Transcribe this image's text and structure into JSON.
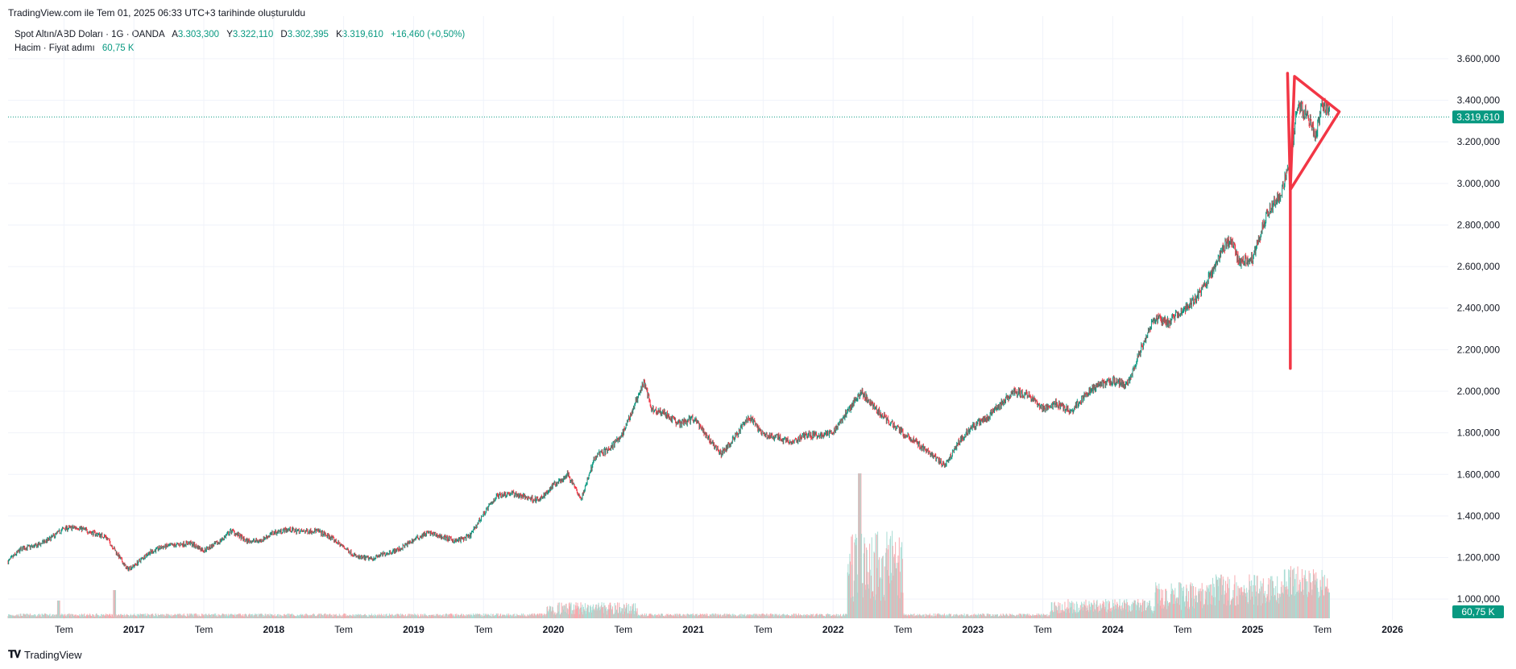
{
  "header": {
    "caption": "TradingView.com ile Tem 01, 2025 06:33 UTC+3 tarihinde oluşturuldu"
  },
  "legend": {
    "symbol": "Spot Altın/ABD Doları · 1G · OANDA",
    "open_label": "A",
    "open": "3.303,300",
    "high_label": "Y",
    "high": "3.322,110",
    "low_label": "D",
    "low": "3.302,395",
    "close_label": "K",
    "close": "3.319,610",
    "change": "+16,460 (+0,50%)",
    "volume_label": "Hacim · Fiyat adımı",
    "volume_value": "60,75 K"
  },
  "colors": {
    "up": "#089981",
    "down": "#f23645",
    "annotation": "#f23645",
    "grid": "#f0f3fa"
  },
  "chart_data": {
    "type": "candlestick",
    "symbol": "Spot Altın/ABD Doları",
    "interval": "1G",
    "ylim": [
      900,
      3650
    ],
    "y_ticks": [
      "3.600,000",
      "3.400,000",
      "3.200,000",
      "3.000,000",
      "2.800,000",
      "2.600,000",
      "2.400,000",
      "2.200,000",
      "2.000,000",
      "1.800,000",
      "1.600,000",
      "1.400,000",
      "1.200,000",
      "1.000,000"
    ],
    "y_tick_values": [
      3600,
      3400,
      3200,
      3000,
      2800,
      2600,
      2400,
      2200,
      2000,
      1800,
      1600,
      1400,
      1200,
      1000
    ],
    "x_ticks": [
      "Tem",
      "2017",
      "Tem",
      "2018",
      "Tem",
      "2019",
      "Tem",
      "2020",
      "Tem",
      "2021",
      "Tem",
      "2022",
      "Tem",
      "2023",
      "Tem",
      "2024",
      "Tem",
      "2025",
      "Tem",
      "2026"
    ],
    "x_tick_dates": [
      2016.5,
      2017,
      2017.5,
      2018,
      2018.5,
      2019,
      2019.5,
      2020,
      2020.5,
      2021,
      2021.5,
      2022,
      2022.5,
      2023,
      2023.5,
      2024,
      2024.5,
      2025,
      2025.5,
      2026
    ],
    "xlim": [
      2016.1,
      2026.4
    ],
    "last_price": 3319.61,
    "last_price_label": "3.319,610",
    "last_volume_label": "60,75 K",
    "price_path": [
      [
        2016.1,
        1180
      ],
      [
        2016.2,
        1245
      ],
      [
        2016.3,
        1255
      ],
      [
        2016.4,
        1290
      ],
      [
        2016.5,
        1340
      ],
      [
        2016.6,
        1345
      ],
      [
        2016.7,
        1320
      ],
      [
        2016.8,
        1300
      ],
      [
        2016.85,
        1250
      ],
      [
        2016.95,
        1145
      ],
      [
        2017.0,
        1160
      ],
      [
        2017.1,
        1220
      ],
      [
        2017.2,
        1250
      ],
      [
        2017.3,
        1260
      ],
      [
        2017.4,
        1270
      ],
      [
        2017.5,
        1235
      ],
      [
        2017.6,
        1270
      ],
      [
        2017.7,
        1330
      ],
      [
        2017.8,
        1280
      ],
      [
        2017.9,
        1280
      ],
      [
        2018.0,
        1320
      ],
      [
        2018.1,
        1335
      ],
      [
        2018.2,
        1325
      ],
      [
        2018.3,
        1330
      ],
      [
        2018.4,
        1300
      ],
      [
        2018.5,
        1250
      ],
      [
        2018.6,
        1200
      ],
      [
        2018.7,
        1195
      ],
      [
        2018.8,
        1220
      ],
      [
        2018.9,
        1240
      ],
      [
        2019.0,
        1285
      ],
      [
        2019.1,
        1320
      ],
      [
        2019.2,
        1300
      ],
      [
        2019.3,
        1280
      ],
      [
        2019.4,
        1300
      ],
      [
        2019.5,
        1410
      ],
      [
        2019.6,
        1500
      ],
      [
        2019.7,
        1510
      ],
      [
        2019.8,
        1490
      ],
      [
        2019.9,
        1475
      ],
      [
        2020.0,
        1550
      ],
      [
        2020.1,
        1600
      ],
      [
        2020.2,
        1480
      ],
      [
        2020.3,
        1690
      ],
      [
        2020.4,
        1720
      ],
      [
        2020.5,
        1800
      ],
      [
        2020.6,
        1970
      ],
      [
        2020.65,
        2040
      ],
      [
        2020.7,
        1920
      ],
      [
        2020.8,
        1890
      ],
      [
        2020.9,
        1840
      ],
      [
        2021.0,
        1870
      ],
      [
        2021.1,
        1780
      ],
      [
        2021.2,
        1700
      ],
      [
        2021.3,
        1780
      ],
      [
        2021.4,
        1880
      ],
      [
        2021.5,
        1790
      ],
      [
        2021.6,
        1780
      ],
      [
        2021.7,
        1750
      ],
      [
        2021.8,
        1790
      ],
      [
        2021.9,
        1790
      ],
      [
        2022.0,
        1800
      ],
      [
        2022.1,
        1900
      ],
      [
        2022.2,
        2000
      ],
      [
        2022.3,
        1920
      ],
      [
        2022.4,
        1850
      ],
      [
        2022.5,
        1800
      ],
      [
        2022.6,
        1750
      ],
      [
        2022.7,
        1700
      ],
      [
        2022.8,
        1640
      ],
      [
        2022.9,
        1760
      ],
      [
        2023.0,
        1830
      ],
      [
        2023.1,
        1870
      ],
      [
        2023.2,
        1940
      ],
      [
        2023.3,
        2000
      ],
      [
        2023.4,
        1980
      ],
      [
        2023.5,
        1920
      ],
      [
        2023.6,
        1940
      ],
      [
        2023.7,
        1900
      ],
      [
        2023.8,
        1980
      ],
      [
        2023.9,
        2030
      ],
      [
        2024.0,
        2050
      ],
      [
        2024.1,
        2030
      ],
      [
        2024.2,
        2200
      ],
      [
        2024.3,
        2350
      ],
      [
        2024.4,
        2330
      ],
      [
        2024.5,
        2390
      ],
      [
        2024.6,
        2450
      ],
      [
        2024.7,
        2560
      ],
      [
        2024.8,
        2700
      ],
      [
        2024.85,
        2730
      ],
      [
        2024.9,
        2620
      ],
      [
        2025.0,
        2640
      ],
      [
        2025.1,
        2850
      ],
      [
        2025.2,
        2950
      ],
      [
        2025.27,
        3100
      ],
      [
        2025.32,
        3380
      ],
      [
        2025.4,
        3320
      ],
      [
        2025.45,
        3230
      ],
      [
        2025.5,
        3380
      ],
      [
        2025.55,
        3340
      ]
    ],
    "volume_note": "volume histogram in lower pane",
    "annotation": {
      "shape": "pennant",
      "color": "#f23645",
      "points": [
        [
          2025.27,
          2110
        ],
        [
          2025.27,
          2970
        ],
        [
          2025.3,
          3515
        ],
        [
          2025.62,
          3345
        ],
        [
          2025.27,
          2970
        ]
      ],
      "top_point": [
        2025.25,
        3530
      ]
    }
  },
  "footer": {
    "brand": "TradingView",
    "logo_icon": "tradingview-logo-icon"
  }
}
